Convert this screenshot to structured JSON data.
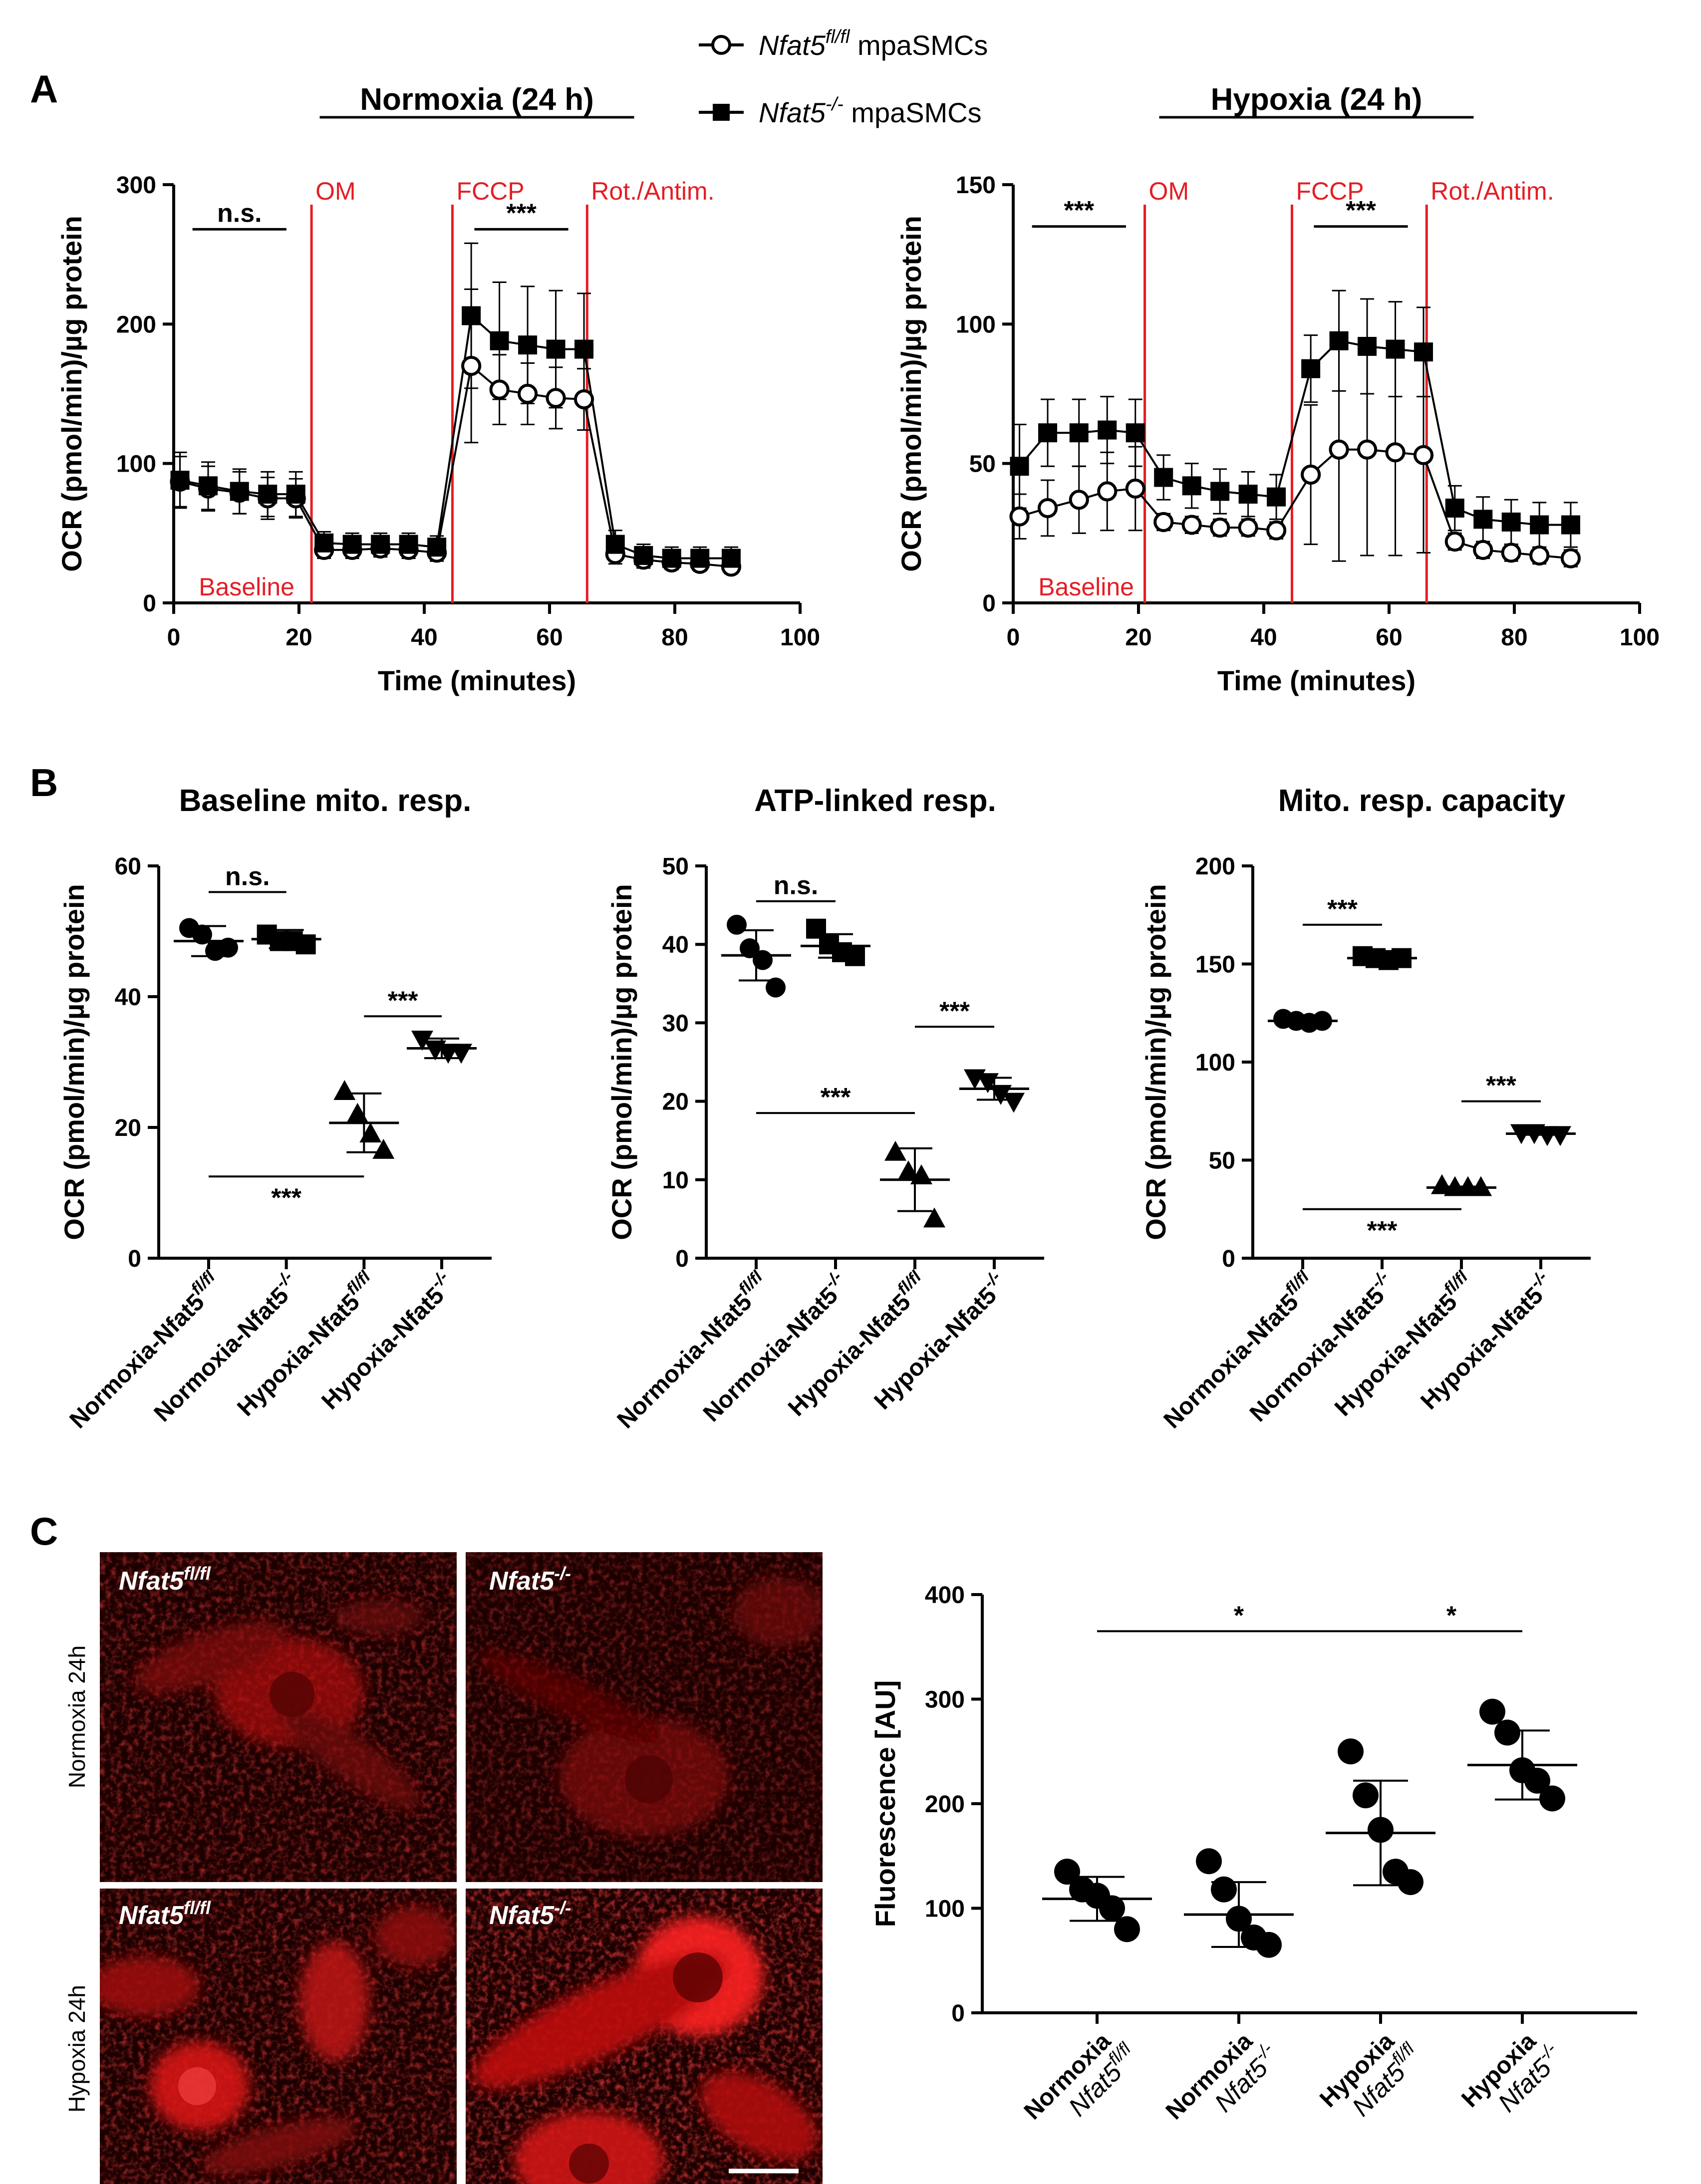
{
  "legend": {
    "items": [
      {
        "gene": "Nfat5",
        "sup": "fl/fl",
        "suffix": " mpaSMCs",
        "marker": "open-circle"
      },
      {
        "gene": "Nfat5",
        "sup": "-/-",
        "suffix": " mpaSMCs",
        "marker": "filled-square"
      }
    ]
  },
  "panels": {
    "A": "A",
    "B": "B",
    "C": "C"
  },
  "colors": {
    "phase_line": "#e31e24",
    "marker": "#000000",
    "micro_bg": "#1a0000",
    "micro_signal": "#e01010"
  },
  "chart_data": [
    {
      "id": "A-normoxia",
      "type": "line",
      "title": "Normoxia (24 h)",
      "xlabel": "Time (minutes)",
      "ylabel": "OCR (pmol/min)/µg protein",
      "xlim": [
        0,
        100
      ],
      "ylim": [
        0,
        300
      ],
      "xticks": [
        0,
        20,
        40,
        60,
        80,
        100
      ],
      "yticks": [
        0,
        100,
        200,
        300
      ],
      "phase_lines": [
        {
          "x": 22,
          "label": "OM"
        },
        {
          "x": 44.5,
          "label": "FCCP"
        },
        {
          "x": 66,
          "label": "Rot./Antim."
        }
      ],
      "baseline_label": "Baseline",
      "x": [
        1,
        5.5,
        10.5,
        15,
        19.5,
        24,
        28.5,
        33,
        37.5,
        42,
        47.5,
        52,
        56.5,
        61,
        65.5,
        70.5,
        75,
        79.5,
        84,
        89
      ],
      "series": [
        {
          "name": "Nfat5fl/fl",
          "marker": "open-circle",
          "values": [
            87,
            82,
            79,
            75,
            75,
            38,
            38,
            39,
            38,
            36,
            170,
            153,
            150,
            147,
            146,
            35,
            31,
            29,
            28,
            26
          ],
          "errors": [
            18,
            16,
            15,
            15,
            14,
            6,
            6,
            6,
            6,
            6,
            55,
            25,
            22,
            22,
            22,
            7,
            6,
            5,
            5,
            5
          ]
        },
        {
          "name": "Nfat5-/-",
          "marker": "filled-square",
          "values": [
            88,
            84,
            80,
            78,
            78,
            43,
            42,
            42,
            42,
            40,
            206,
            188,
            185,
            182,
            182,
            42,
            34,
            32,
            32,
            32
          ],
          "errors": [
            20,
            17,
            16,
            16,
            16,
            8,
            8,
            8,
            8,
            8,
            52,
            42,
            42,
            42,
            40,
            10,
            8,
            8,
            8,
            8
          ]
        }
      ],
      "significance": [
        {
          "x1": 3,
          "x2": 18,
          "y": 268,
          "label": "n.s."
        },
        {
          "x1": 48,
          "x2": 63,
          "y": 268,
          "label": "***"
        }
      ]
    },
    {
      "id": "A-hypoxia",
      "type": "line",
      "title": "Hypoxia (24 h)",
      "xlabel": "Time (minutes)",
      "ylabel": "OCR (pmol/min)/µg protein",
      "xlim": [
        0,
        100
      ],
      "ylim": [
        0,
        150
      ],
      "xticks": [
        0,
        20,
        40,
        60,
        80,
        100
      ],
      "yticks": [
        0,
        50,
        100,
        150
      ],
      "phase_lines": [
        {
          "x": 21,
          "label": "OM"
        },
        {
          "x": 44.5,
          "label": "FCCP"
        },
        {
          "x": 66,
          "label": "Rot./Antim."
        }
      ],
      "baseline_label": "Baseline",
      "x": [
        1,
        5.5,
        10.5,
        15,
        19.5,
        24,
        28.5,
        33,
        37.5,
        42,
        47.5,
        52,
        56.5,
        61,
        65.5,
        70.5,
        75,
        79.5,
        84,
        89
      ],
      "series": [
        {
          "name": "Nfat5fl/fl",
          "marker": "open-circle",
          "values": [
            31,
            34,
            37,
            40,
            41,
            29,
            28,
            27,
            27,
            26,
            46,
            55,
            55,
            54,
            53,
            22,
            19,
            18,
            17,
            16
          ],
          "errors": [
            8,
            10,
            12,
            14,
            15,
            3,
            3,
            3,
            3,
            3,
            25,
            40,
            38,
            37,
            35,
            3,
            3,
            3,
            3,
            3
          ]
        },
        {
          "name": "Nfat5-/-",
          "marker": "filled-square",
          "values": [
            49,
            61,
            61,
            62,
            61,
            45,
            42,
            40,
            39,
            38,
            84,
            94,
            92,
            91,
            90,
            34,
            30,
            29,
            28,
            28
          ],
          "errors": [
            15,
            12,
            12,
            12,
            12,
            8,
            8,
            8,
            8,
            8,
            12,
            18,
            17,
            17,
            16,
            8,
            8,
            8,
            8,
            8
          ]
        }
      ],
      "significance": [
        {
          "x1": 3,
          "x2": 18,
          "y": 135,
          "label": "***"
        },
        {
          "x1": 48,
          "x2": 63,
          "y": 135,
          "label": "***"
        }
      ]
    },
    {
      "id": "B-baseline",
      "type": "scatter",
      "title": "Baseline mito. resp.",
      "ylabel": "OCR (pmol/min)/µg protein",
      "ylim": [
        0,
        60
      ],
      "yticks": [
        0,
        20,
        40,
        60
      ],
      "categories": [
        "Normoxia-Nfat5fl/fl",
        "Normoxia-Nfat5-/-",
        "Hypoxia-Nfat5fl/fl",
        "Hypoxia-Nfat5-/-"
      ],
      "category_parts": [
        {
          "prefix": "Normoxia-Nfat5",
          "sup": "fl/fl"
        },
        {
          "prefix": "Normoxia-Nfat5",
          "sup": "-/-"
        },
        {
          "prefix": "Hypoxia-Nfat5",
          "sup": "fl/fl"
        },
        {
          "prefix": "Hypoxia-Nfat5",
          "sup": "-/-"
        }
      ],
      "markers": [
        "circle",
        "square",
        "triangle-up",
        "triangle-down"
      ],
      "points": [
        [
          50.5,
          49.5,
          47,
          47.5
        ],
        [
          49.5,
          48.5,
          48.5,
          48
        ],
        [
          25.5,
          22,
          19,
          16.5
        ],
        [
          33.5,
          32,
          31.5,
          31.5
        ]
      ],
      "means": [
        48.5,
        48.8,
        20.7,
        32.1
      ],
      "sds": [
        2.3,
        1.4,
        4.5,
        1.5
      ],
      "significance": [
        {
          "from": 0,
          "to": 1,
          "y": 56,
          "label": "n.s.",
          "label_pos": "above"
        },
        {
          "from": 2,
          "to": 3,
          "y": 37,
          "label": "***",
          "label_pos": "above"
        },
        {
          "from": 0,
          "to": 2,
          "y": 12.5,
          "label": "***",
          "label_pos": "below"
        }
      ]
    },
    {
      "id": "B-atp",
      "type": "scatter",
      "title": "ATP-linked resp.",
      "ylabel": "OCR (pmol/min)/µg protein",
      "ylim": [
        0,
        50
      ],
      "yticks": [
        0,
        10,
        20,
        30,
        40,
        50
      ],
      "categories": [
        "Normoxia-Nfat5fl/fl",
        "Normoxia-Nfat5-/-",
        "Hypoxia-Nfat5fl/fl",
        "Hypoxia-Nfat5-/-"
      ],
      "category_parts": [
        {
          "prefix": "Normoxia-Nfat5",
          "sup": "fl/fl"
        },
        {
          "prefix": "Normoxia-Nfat5",
          "sup": "-/-"
        },
        {
          "prefix": "Hypoxia-Nfat5",
          "sup": "fl/fl"
        },
        {
          "prefix": "Hypoxia-Nfat5",
          "sup": "-/-"
        }
      ],
      "markers": [
        "circle",
        "square",
        "triangle-up",
        "triangle-down"
      ],
      "points": [
        [
          42.5,
          39.5,
          38,
          34.5
        ],
        [
          42,
          40,
          39,
          38.5
        ],
        [
          13.5,
          11,
          10.5,
          5
        ],
        [
          23,
          22.5,
          21,
          20
        ]
      ],
      "means": [
        38.6,
        39.8,
        10.0,
        21.6
      ],
      "sds": [
        3.2,
        1.5,
        4.0,
        1.4
      ],
      "significance": [
        {
          "from": 0,
          "to": 1,
          "y": 45.5,
          "label": "n.s.",
          "label_pos": "above"
        },
        {
          "from": 2,
          "to": 3,
          "y": 29.5,
          "label": "***",
          "label_pos": "above"
        },
        {
          "from": 0,
          "to": 2,
          "y": 18.5,
          "label": "***",
          "label_pos": "above"
        }
      ]
    },
    {
      "id": "B-capacity",
      "type": "scatter",
      "title": "Mito. resp. capacity",
      "ylabel": "OCR (pmol/min)/µg protein",
      "ylim": [
        0,
        200
      ],
      "yticks": [
        0,
        50,
        100,
        150,
        200
      ],
      "categories": [
        "Normoxia-Nfat5fl/fl",
        "Normoxia-Nfat5-/-",
        "Hypoxia-Nfat5fl/fl",
        "Hypoxia-Nfat5-/-"
      ],
      "category_parts": [
        {
          "prefix": "Normoxia-Nfat5",
          "sup": "fl/fl"
        },
        {
          "prefix": "Normoxia-Nfat5",
          "sup": "-/-"
        },
        {
          "prefix": "Hypoxia-Nfat5",
          "sup": "fl/fl"
        },
        {
          "prefix": "Hypoxia-Nfat5",
          "sup": "-/-"
        }
      ],
      "markers": [
        "circle",
        "square",
        "triangle-up",
        "triangle-down"
      ],
      "points": [
        [
          122,
          121,
          120,
          121
        ],
        [
          154,
          153,
          152,
          153
        ],
        [
          37,
          36,
          36,
          36
        ],
        [
          64,
          64,
          63,
          63
        ]
      ],
      "means": [
        121,
        153,
        36,
        63.5
      ],
      "sds": [
        1.0,
        1.0,
        0.5,
        0.6
      ],
      "significance": [
        {
          "from": 0,
          "to": 1,
          "y": 170,
          "label": "***",
          "label_pos": "above"
        },
        {
          "from": 2,
          "to": 3,
          "y": 80,
          "label": "***",
          "label_pos": "above"
        },
        {
          "from": 0,
          "to": 2,
          "y": 25,
          "label": "***",
          "label_pos": "below"
        }
      ]
    },
    {
      "id": "C-fluorescence",
      "type": "scatter",
      "ylabel": "Fluorescence [AU]",
      "ylim": [
        0,
        400
      ],
      "yticks": [
        0,
        100,
        200,
        300,
        400
      ],
      "categories": [
        "Normoxia Nfat5fl/fl",
        "Normoxia Nfat5-/-",
        "Hypoxia Nfat5fl/fl",
        "Hypoxia Nfat5-/-"
      ],
      "category_parts": [
        {
          "line1": "Normoxia",
          "gene": "Nfat5",
          "sup": "fl/fl"
        },
        {
          "line1": "Normoxia",
          "gene": "Nfat5",
          "sup": "-/-"
        },
        {
          "line1": "Hypoxia",
          "gene": "Nfat5",
          "sup": "fl/fl"
        },
        {
          "line1": "Hypoxia",
          "gene": "Nfat5",
          "sup": "-/-"
        }
      ],
      "markers": [
        "circle",
        "circle",
        "circle",
        "circle"
      ],
      "points": [
        [
          135,
          118,
          112,
          100,
          80
        ],
        [
          145,
          118,
          90,
          72,
          65
        ],
        [
          250,
          208,
          175,
          135,
          125
        ],
        [
          288,
          268,
          232,
          222,
          205
        ]
      ],
      "means": [
        109,
        94,
        172,
        237
      ],
      "sds": [
        21,
        31,
        50,
        33
      ],
      "significance": [
        {
          "from": 0,
          "to": 2,
          "y": 365,
          "label": "*",
          "label_pos": "above"
        },
        {
          "from": 2,
          "to": 3,
          "y": 365,
          "label": "*",
          "label_pos": "above"
        }
      ]
    }
  ],
  "micrographs": {
    "rows": [
      "Normoxia 24h",
      "Hypoxia 24h"
    ],
    "tiles": [
      {
        "gene": "Nfat5",
        "sup": "fl/fl"
      },
      {
        "gene": "Nfat5",
        "sup": "-/-"
      },
      {
        "gene": "Nfat5",
        "sup": "fl/fl"
      },
      {
        "gene": "Nfat5",
        "sup": "-/-"
      }
    ]
  }
}
